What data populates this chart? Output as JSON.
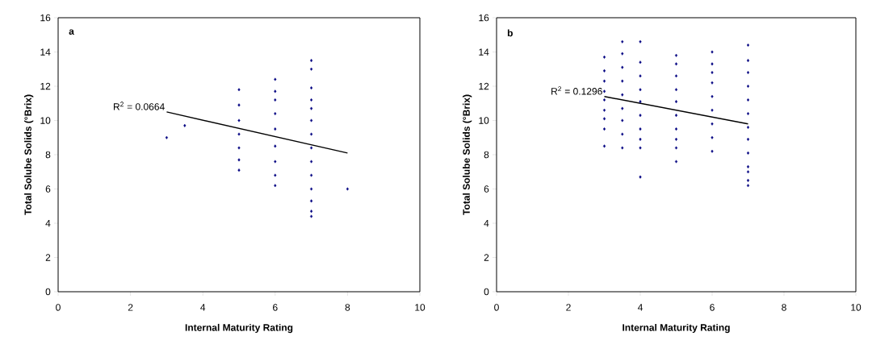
{
  "chart_data": [
    {
      "type": "scatter",
      "xlabel": "Internal Maturity Rating",
      "ylabel": "Total Solube Solids (°Brix)",
      "annotations": [
        "a",
        "R$^{2}$ = 0.0664"
      ],
      "grid": false,
      "xlim": [
        0,
        10
      ],
      "xticks": [
        0,
        2,
        4,
        6,
        8,
        10
      ],
      "ylim": [
        0,
        16
      ],
      "yticks": [
        0,
        2,
        4,
        6,
        8,
        10,
        12,
        14,
        16
      ],
      "series": [
        {
          "marker": "diamond",
          "color": "#000080",
          "x": [
            3,
            3.5,
            8,
            5,
            5,
            5,
            5,
            5,
            5,
            5,
            6,
            6,
            6,
            6,
            6,
            6,
            6,
            6,
            6,
            7,
            7,
            7,
            7,
            7,
            7,
            7,
            7,
            7,
            7,
            7,
            7,
            7,
            7
          ],
          "values": [
            9.0,
            9.7,
            6.0,
            11.8,
            10.9,
            10.0,
            9.2,
            8.4,
            7.7,
            7.1,
            12.4,
            11.7,
            11.2,
            10.4,
            9.5,
            8.5,
            7.6,
            6.8,
            6.2,
            13.5,
            13.0,
            11.9,
            11.2,
            10.7,
            10.0,
            9.2,
            8.4,
            7.6,
            6.8,
            6.0,
            5.3,
            4.7,
            4.4
          ]
        },
        {
          "type": "line",
          "color": "#000000",
          "x": [
            3,
            8
          ],
          "values": [
            10.5,
            8.1
          ]
        }
      ]
    },
    {
      "type": "scatter",
      "xlabel": "Internal Maturity Rating",
      "ylabel": "Total Solube Solids (°Brix)",
      "annotations": [
        "b",
        "R$^{2}$ = 0.1296"
      ],
      "grid": false,
      "xlim": [
        0,
        10
      ],
      "xticks": [
        0,
        2,
        4,
        6,
        8,
        10
      ],
      "ylim": [
        0,
        16
      ],
      "yticks": [
        0,
        2,
        4,
        6,
        8,
        10,
        12,
        14,
        16
      ],
      "series": [
        {
          "marker": "diamond",
          "color": "#000080",
          "x": [
            3,
            3,
            3,
            3,
            3,
            3,
            3,
            3,
            3,
            3.5,
            3.5,
            3.5,
            3.5,
            3.5,
            3.5,
            3.5,
            3.5,
            3.5,
            4,
            4,
            4,
            4,
            4,
            4,
            4,
            4,
            4,
            4,
            5,
            5,
            5,
            5,
            5,
            5,
            5,
            5,
            5,
            5,
            6,
            6,
            6,
            6,
            6,
            6,
            6,
            6,
            6,
            7,
            7,
            7,
            7,
            7,
            7,
            7,
            7,
            7,
            7,
            7,
            7,
            7
          ],
          "values": [
            13.7,
            12.9,
            12.3,
            11.7,
            11.2,
            10.6,
            10.1,
            9.5,
            8.5,
            14.6,
            13.9,
            13.1,
            12.3,
            11.5,
            10.7,
            10.0,
            9.2,
            8.4,
            14.6,
            13.4,
            12.6,
            11.8,
            11.1,
            10.3,
            9.5,
            8.9,
            8.4,
            6.7,
            13.8,
            13.3,
            12.6,
            11.8,
            11.1,
            10.3,
            9.5,
            8.9,
            8.4,
            7.6,
            14.0,
            13.3,
            12.8,
            12.2,
            11.4,
            10.6,
            9.8,
            9.0,
            8.2,
            14.4,
            13.5,
            12.8,
            12.0,
            11.2,
            10.4,
            9.6,
            8.9,
            8.1,
            7.3,
            7.0,
            6.5,
            6.2
          ]
        },
        {
          "type": "line",
          "color": "#000000",
          "x": [
            3,
            7
          ],
          "values": [
            11.4,
            9.8
          ]
        }
      ]
    }
  ]
}
